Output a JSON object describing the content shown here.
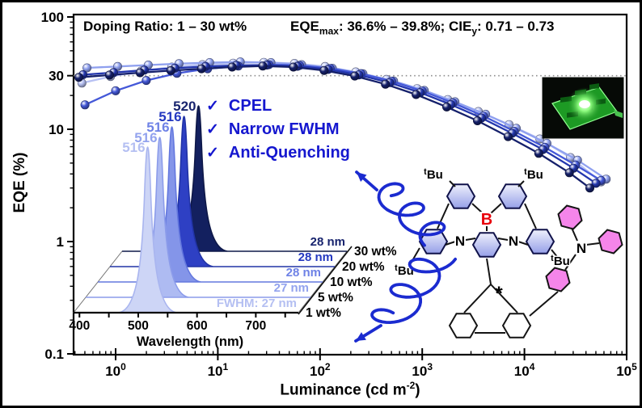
{
  "titles": {
    "doping": "Doping Ratio: 1 – 30 wt%",
    "eqe_label": "EQE",
    "eqe_sub": "max",
    "eqe_range": ": 36.6% – 39.8%; CIE",
    "cie_sub": "y",
    "cie_range": ": 0.71 – 0.73"
  },
  "axis": {
    "y_label": "EQE (%)",
    "x_label_pre": "Luminance (cd m",
    "x_label_exp": "-2",
    "x_label_post": ")",
    "y_ticks": [
      {
        "label": "100",
        "value": 100
      },
      {
        "label": "30",
        "value": 30
      },
      {
        "label": "10",
        "value": 10
      },
      {
        "label": "1",
        "value": 1
      },
      {
        "label": "0.1",
        "value": 0.1
      }
    ],
    "x_ticks": [
      {
        "base": "10",
        "exp": "0",
        "log": 0
      },
      {
        "base": "10",
        "exp": "1",
        "log": 1
      },
      {
        "base": "10",
        "exp": "2",
        "log": 2
      },
      {
        "base": "10",
        "exp": "3",
        "log": 3
      },
      {
        "base": "10",
        "exp": "4",
        "log": 4
      },
      {
        "base": "10",
        "exp": "5",
        "log": 5
      }
    ],
    "ref_value": 30
  },
  "checklist": {
    "check": "✓",
    "color": "#1517cf",
    "items": [
      "CPEL",
      "Narrow FWHM",
      "Anti-Quenching"
    ]
  },
  "molecule": {
    "tbu_sup": "t",
    "tbu": "Bu",
    "boron": "B",
    "nitrogen": "N",
    "chiral": "*",
    "boron_color": "#e8000b",
    "amine_color": "#f585ea"
  },
  "chart_data": {
    "type": "line",
    "title": "",
    "xlabel": "Luminance (cd m-2)",
    "ylabel": "EQE (%)",
    "xscale": "log",
    "yscale": "log",
    "xlim": [
      0.4,
      100000
    ],
    "ylim": [
      0.1,
      100
    ],
    "grid": false,
    "legend_position": "none",
    "ref_line": {
      "y": 30,
      "style": "dotted"
    },
    "series": [
      {
        "name": "1 wt%",
        "color": "#b7c1f3",
        "points": [
          [
            -0.33,
            25.8
          ],
          [
            -0.05,
            29.5
          ],
          [
            0.25,
            33.0
          ],
          [
            0.55,
            35.8
          ],
          [
            0.85,
            37.6
          ],
          [
            1.15,
            38.8
          ],
          [
            1.45,
            39.4
          ],
          [
            1.75,
            38.6
          ],
          [
            2.05,
            36.2
          ],
          [
            2.35,
            32.4
          ],
          [
            2.65,
            27.8
          ],
          [
            2.95,
            23.0
          ],
          [
            3.25,
            18.4
          ],
          [
            3.55,
            14.4
          ],
          [
            3.85,
            11.0
          ],
          [
            4.15,
            8.2
          ],
          [
            4.45,
            5.6
          ],
          [
            4.75,
            3.4
          ]
        ]
      },
      {
        "name": "5 wt%",
        "color": "#8fa0ef",
        "points": [
          [
            -0.28,
            35.2
          ],
          [
            0.02,
            36.2
          ],
          [
            0.32,
            37.3
          ],
          [
            0.62,
            38.4
          ],
          [
            0.92,
            39.2
          ],
          [
            1.22,
            39.8
          ],
          [
            1.52,
            39.2
          ],
          [
            1.82,
            37.6
          ],
          [
            2.12,
            34.9
          ],
          [
            2.42,
            31.2
          ],
          [
            2.72,
            26.9
          ],
          [
            3.02,
            22.2
          ],
          [
            3.32,
            17.6
          ],
          [
            3.62,
            13.6
          ],
          [
            3.92,
            10.2
          ],
          [
            4.22,
            7.5
          ],
          [
            4.52,
            5.3
          ],
          [
            4.8,
            3.6
          ]
        ]
      },
      {
        "name": "10 wt%",
        "color": "#4458d8",
        "points": [
          [
            -0.3,
            16.5
          ],
          [
            0.0,
            22.0
          ],
          [
            0.3,
            27.2
          ],
          [
            0.6,
            31.5
          ],
          [
            0.9,
            34.6
          ],
          [
            1.2,
            36.6
          ],
          [
            1.5,
            37.6
          ],
          [
            1.8,
            37.0
          ],
          [
            2.1,
            34.8
          ],
          [
            2.4,
            31.3
          ],
          [
            2.7,
            26.8
          ],
          [
            3.0,
            21.9
          ],
          [
            3.3,
            17.2
          ],
          [
            3.6,
            13.1
          ],
          [
            3.9,
            9.6
          ],
          [
            4.2,
            6.9
          ],
          [
            4.5,
            4.8
          ],
          [
            4.75,
            3.5
          ]
        ]
      },
      {
        "name": "20 wt%",
        "color": "#2336ad",
        "points": [
          [
            -0.32,
            30.6
          ],
          [
            -0.02,
            32.0
          ],
          [
            0.28,
            33.6
          ],
          [
            0.58,
            35.0
          ],
          [
            0.88,
            36.2
          ],
          [
            1.18,
            37.1
          ],
          [
            1.48,
            37.3
          ],
          [
            1.78,
            36.4
          ],
          [
            2.08,
            34.1
          ],
          [
            2.38,
            30.5
          ],
          [
            2.68,
            26.0
          ],
          [
            2.98,
            21.2
          ],
          [
            3.28,
            16.6
          ],
          [
            3.58,
            12.6
          ],
          [
            3.88,
            9.2
          ],
          [
            4.18,
            6.6
          ],
          [
            4.48,
            4.5
          ],
          [
            4.7,
            3.3
          ]
        ]
      },
      {
        "name": "30 wt%",
        "color": "#15206b",
        "points": [
          [
            -0.36,
            29.0
          ],
          [
            -0.06,
            30.4
          ],
          [
            0.24,
            31.9
          ],
          [
            0.54,
            33.3
          ],
          [
            0.84,
            34.6
          ],
          [
            1.14,
            35.8
          ],
          [
            1.44,
            36.6
          ],
          [
            1.74,
            35.8
          ],
          [
            2.04,
            33.4
          ],
          [
            2.34,
            29.8
          ],
          [
            2.64,
            25.2
          ],
          [
            2.94,
            20.4
          ],
          [
            3.24,
            15.8
          ],
          [
            3.54,
            11.9
          ],
          [
            3.84,
            8.6
          ],
          [
            4.14,
            6.1
          ],
          [
            4.44,
            4.1
          ],
          [
            4.64,
            3.0
          ]
        ]
      }
    ],
    "inset": {
      "type": "area",
      "xlabel": "Wavelength (nm)",
      "x_ticks": [
        400,
        500,
        600,
        700
      ],
      "x_minor_step": 50,
      "xlim": [
        390,
        780
      ],
      "series": [
        {
          "name": "1 wt%",
          "peak_nm": 516,
          "fwhm_nm": 27,
          "fwhm_label": "FWHM: 27 nm",
          "fill": "#cdd5f6",
          "line": "#a9b5ef",
          "label_color": "#b4bff2"
        },
        {
          "name": "5 wt%",
          "peak_nm": 516,
          "fwhm_nm": 27,
          "fwhm_label": "27 nm",
          "fill": "#aebbf2",
          "line": "#8c9cea",
          "label_color": "#93a3ee"
        },
        {
          "name": "10 wt%",
          "peak_nm": 516,
          "fwhm_nm": 28,
          "fwhm_label": "28 nm",
          "fill": "#8495e9",
          "line": "#6478de",
          "label_color": "#6e82e6"
        },
        {
          "name": "20 wt%",
          "peak_nm": 516,
          "fwhm_nm": 28,
          "fwhm_label": "28 nm",
          "fill": "#2e40c4",
          "line": "#2133a6",
          "label_color": "#2438c0"
        },
        {
          "name": "30 wt%",
          "peak_nm": 520,
          "fwhm_nm": 28,
          "fwhm_label": "28 nm",
          "fill": "#13205f",
          "line": "#0e1848",
          "label_color": "#18246e"
        }
      ]
    }
  }
}
